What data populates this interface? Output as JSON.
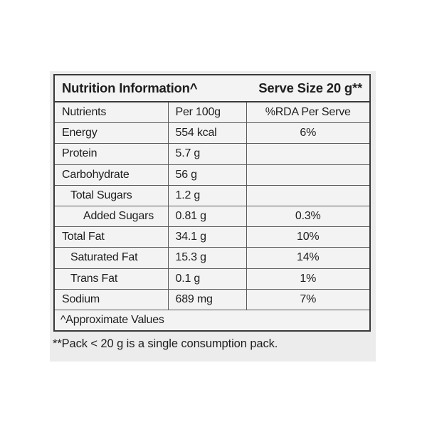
{
  "header": {
    "title": "Nutrition Information^",
    "serve_size": "Serve Size 20 g**"
  },
  "columns": [
    "Nutrients",
    "Per 100g",
    "%RDA Per Serve"
  ],
  "rows": [
    {
      "nutrient": "Energy",
      "per100": "554 kcal",
      "rda": "6%"
    },
    {
      "nutrient": "Protein",
      "per100": "5.7 g",
      "rda": ""
    },
    {
      "nutrient": "Carbohydrate",
      "per100": "56 g",
      "rda": ""
    },
    {
      "nutrient": "Total Sugars",
      "per100": "1.2 g",
      "rda": ""
    },
    {
      "nutrient": "Added Sugars",
      "per100": "0.81 g",
      "rda": "0.3%"
    },
    {
      "nutrient": "Total Fat",
      "per100": "34.1 g",
      "rda": "10%"
    },
    {
      "nutrient": "Saturated Fat",
      "per100": "15.3 g",
      "rda": "14%"
    },
    {
      "nutrient": "Trans Fat",
      "per100": "0.1 g",
      "rda": "1%"
    },
    {
      "nutrient": "Sodium",
      "per100": "689 mg",
      "rda": "7%"
    }
  ],
  "approx_note": "^Approximate Values",
  "footnote": "**Pack < 20 g is a single consumption pack."
}
